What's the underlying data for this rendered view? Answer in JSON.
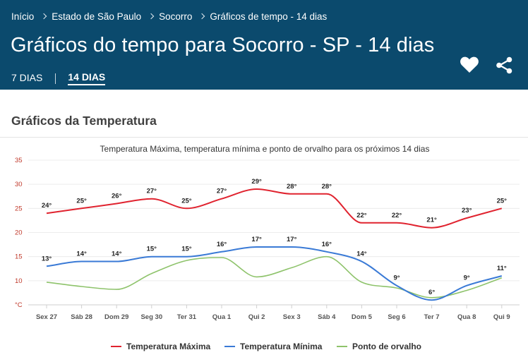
{
  "breadcrumb": [
    "Início",
    "Estado de São Paulo",
    "Socorro",
    "Gráficos de tempo - 14 dias"
  ],
  "page_title": "Gráficos do tempo para Socorro - SP - 14 dias",
  "tabs": [
    {
      "label": "7 DIAS",
      "active": false
    },
    {
      "label": "14 DIAS",
      "active": true
    }
  ],
  "icons": {
    "favorite": "heart-icon",
    "share": "share-icon"
  },
  "section_title": "Gráficos da Temperatura",
  "colors": {
    "header_bg": "#0b4a6d",
    "max": "#e0232f",
    "min": "#3a7ad6",
    "dew": "#8ec36b",
    "axis_label": "#c0392b"
  },
  "chart_data": {
    "type": "line",
    "title": "Temperatura Máxima, temperatura mínima e ponto de orvalho para os próximos 14 dias",
    "categories": [
      "Sex 27",
      "Sáb 28",
      "Dom 29",
      "Seg 30",
      "Ter 31",
      "Qua 1",
      "Qui 2",
      "Sex 3",
      "Sáb 4",
      "Dom 5",
      "Seg 6",
      "Ter 7",
      "Qua 8",
      "Qui 9"
    ],
    "y_ticks": [
      "35",
      "30",
      "25",
      "20",
      "15",
      "10",
      "°C"
    ],
    "ylim": [
      5,
      35
    ],
    "grid": true,
    "legend_position": "bottom",
    "series": [
      {
        "name": "Temperatura Máxima",
        "values": [
          24,
          25,
          26,
          27,
          25,
          27,
          29,
          28,
          28,
          22,
          22,
          21,
          23,
          25
        ],
        "labels": [
          "24°",
          "25°",
          "26°",
          "27°",
          "25°",
          "27°",
          "29°",
          "28°",
          "28°",
          "22°",
          "22°",
          "21°",
          "23°",
          "25°"
        ]
      },
      {
        "name": "Temperatura Mínima",
        "values": [
          13,
          14,
          14,
          15,
          15,
          16,
          17,
          17,
          16,
          14,
          9,
          6,
          9,
          11
        ],
        "labels": [
          "13°",
          "14°",
          "14°",
          "15°",
          "15°",
          "16°",
          "17°",
          "17°",
          "16°",
          "14°",
          "9°",
          "6°",
          "9°",
          "11°"
        ]
      },
      {
        "name": "Ponto de orvalho",
        "values": [
          9.7,
          8.8,
          8.2,
          11.5,
          14.2,
          14.8,
          10.8,
          12.7,
          15.0,
          9.7,
          8.5,
          6.5,
          8.0,
          10.6
        ]
      }
    ]
  }
}
